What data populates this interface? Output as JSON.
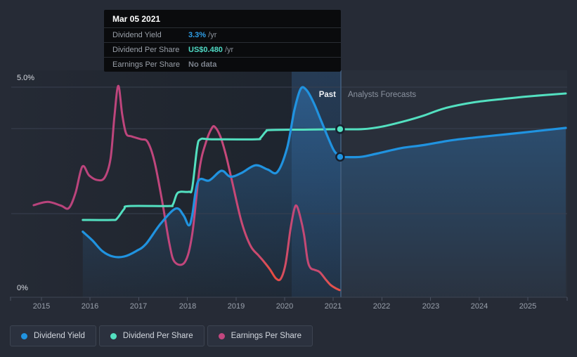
{
  "page": {
    "background": "#262b36"
  },
  "tooltip": {
    "date": "Mar 05 2021",
    "rows": [
      {
        "label": "Dividend Yield",
        "value": "3.3%",
        "suffix": " /yr",
        "value_color": "#2e9fe8"
      },
      {
        "label": "Dividend Per Share",
        "value": "US$0.480",
        "suffix": " /yr",
        "value_color": "#4fd9c4"
      },
      {
        "label": "Earnings Per Share",
        "value": "No data",
        "suffix": "",
        "value_color": "#7d838d"
      }
    ]
  },
  "chart": {
    "past_label": "Past",
    "forecast_label": "Analysts Forecasts",
    "y_axis_top": "5.0%",
    "y_axis_bottom": "0%",
    "years": [
      "2015",
      "2016",
      "2017",
      "2018",
      "2019",
      "2020",
      "2021",
      "2022",
      "2023",
      "2024",
      "2025"
    ]
  },
  "legend": {
    "items": [
      {
        "label": "Dividend Yield",
        "color": "#2093e0"
      },
      {
        "label": "Dividend Per Share",
        "color": "#53e0c0"
      },
      {
        "label": "Earnings Per Share",
        "color": "#c2477f"
      }
    ]
  },
  "chart_data": {
    "type": "line",
    "x_axis": {
      "label": "year",
      "range": [
        2014.7,
        2025.9
      ],
      "ticks": [
        2015,
        2016,
        2017,
        2018,
        2019,
        2020,
        2021,
        2022,
        2023,
        2024,
        2025
      ]
    },
    "y_axis": {
      "label": "percent of left axis",
      "range": [
        0,
        5
      ],
      "tick_labels": [
        "5.0%",
        "0%"
      ],
      "gridlines_pct": [
        5.0,
        4.0,
        2.0,
        0
      ]
    },
    "divider_year": 2021.16,
    "highlight_band_years": [
      2020.15,
      2021.16
    ],
    "legend_position": "bottom-left",
    "cursor": {
      "date": "Mar 05 2021",
      "year": 2021.14,
      "dividend_yield_pct": 3.34,
      "dividend_per_share_usd": "US$0.480",
      "dividend_per_share_plot_pct": 4.0,
      "earnings_per_share": "No data"
    },
    "series": [
      {
        "name": "Dividend Yield",
        "color": "#2093e0",
        "unit": "%",
        "past": [
          [
            2015.85,
            1.56
          ],
          [
            2016.05,
            1.35
          ],
          [
            2016.25,
            1.1
          ],
          [
            2016.47,
            0.97
          ],
          [
            2016.7,
            0.97
          ],
          [
            2016.95,
            1.1
          ],
          [
            2017.15,
            1.27
          ],
          [
            2017.45,
            1.75
          ],
          [
            2017.76,
            2.11
          ],
          [
            2017.92,
            1.95
          ],
          [
            2018.03,
            1.71
          ],
          [
            2018.1,
            1.95
          ],
          [
            2018.22,
            2.76
          ],
          [
            2018.45,
            2.78
          ],
          [
            2018.7,
            3.01
          ],
          [
            2018.88,
            2.87
          ],
          [
            2019.1,
            2.95
          ],
          [
            2019.4,
            3.14
          ],
          [
            2019.65,
            3.04
          ],
          [
            2019.85,
            2.98
          ],
          [
            2020.05,
            3.55
          ],
          [
            2020.2,
            4.45
          ],
          [
            2020.33,
            4.96
          ],
          [
            2020.45,
            4.93
          ],
          [
            2020.6,
            4.62
          ],
          [
            2020.75,
            4.2
          ],
          [
            2020.9,
            3.78
          ],
          [
            2021.02,
            3.48
          ],
          [
            2021.14,
            3.34
          ]
        ],
        "forecast": [
          [
            2021.14,
            3.34
          ],
          [
            2021.55,
            3.34
          ],
          [
            2021.9,
            3.42
          ],
          [
            2022.4,
            3.55
          ],
          [
            2022.85,
            3.62
          ],
          [
            2023.4,
            3.73
          ],
          [
            2023.9,
            3.8
          ],
          [
            2024.4,
            3.86
          ],
          [
            2024.9,
            3.92
          ],
          [
            2025.78,
            4.03
          ]
        ]
      },
      {
        "name": "Dividend Per Share",
        "color": "#53e0c0",
        "unit": "US$ plotted on % axis (plot 4.0 = US$0.480, i.e. US$0.12 per plot unit)",
        "past": [
          [
            2015.85,
            1.84
          ],
          [
            2016.45,
            1.84
          ],
          [
            2016.55,
            1.87
          ],
          [
            2016.7,
            2.1
          ],
          [
            2016.8,
            2.17
          ],
          [
            2017.6,
            2.17
          ],
          [
            2017.7,
            2.2
          ],
          [
            2017.78,
            2.45
          ],
          [
            2017.86,
            2.51
          ],
          [
            2018.03,
            2.51
          ],
          [
            2018.1,
            2.6
          ],
          [
            2018.2,
            3.55
          ],
          [
            2018.27,
            3.76
          ],
          [
            2018.5,
            3.76
          ],
          [
            2019.4,
            3.76
          ],
          [
            2019.5,
            3.79
          ],
          [
            2019.62,
            3.95
          ],
          [
            2019.72,
            3.98
          ],
          [
            2020.5,
            3.99
          ],
          [
            2021.13,
            4.0
          ]
        ],
        "forecast": [
          [
            2021.13,
            4.0
          ],
          [
            2021.6,
            4.0
          ],
          [
            2022.0,
            4.06
          ],
          [
            2022.5,
            4.2
          ],
          [
            2022.85,
            4.32
          ],
          [
            2023.3,
            4.5
          ],
          [
            2023.9,
            4.64
          ],
          [
            2024.5,
            4.72
          ],
          [
            2025.0,
            4.78
          ],
          [
            2025.78,
            4.85
          ]
        ]
      },
      {
        "name": "Earnings Per Share",
        "color": "#c2477f",
        "negative_color": "#e65047",
        "unit": "plotted on % axis, no data after Mar 05 2021",
        "negative_periods": [
          [
            2019.62,
            2019.95
          ],
          [
            2020.9,
            2021.13
          ]
        ],
        "past": [
          [
            2014.84,
            2.19
          ],
          [
            2015.13,
            2.27
          ],
          [
            2015.4,
            2.18
          ],
          [
            2015.56,
            2.12
          ],
          [
            2015.7,
            2.48
          ],
          [
            2015.84,
            3.11
          ],
          [
            2015.98,
            2.9
          ],
          [
            2016.15,
            2.79
          ],
          [
            2016.3,
            2.85
          ],
          [
            2016.42,
            3.3
          ],
          [
            2016.5,
            4.3
          ],
          [
            2016.58,
            5.03
          ],
          [
            2016.66,
            4.35
          ],
          [
            2016.74,
            3.9
          ],
          [
            2016.85,
            3.83
          ],
          [
            2017.05,
            3.76
          ],
          [
            2017.18,
            3.7
          ],
          [
            2017.32,
            3.25
          ],
          [
            2017.48,
            2.3
          ],
          [
            2017.63,
            1.28
          ],
          [
            2017.74,
            0.84
          ],
          [
            2017.95,
            0.84
          ],
          [
            2018.1,
            1.5
          ],
          [
            2018.25,
            3.05
          ],
          [
            2018.38,
            3.68
          ],
          [
            2018.5,
            4.02
          ],
          [
            2018.57,
            4.05
          ],
          [
            2018.68,
            3.82
          ],
          [
            2018.8,
            3.35
          ],
          [
            2018.93,
            2.7
          ],
          [
            2019.12,
            1.77
          ],
          [
            2019.3,
            1.22
          ],
          [
            2019.46,
            1.0
          ],
          [
            2019.58,
            0.84
          ],
          [
            2019.7,
            0.66
          ],
          [
            2019.82,
            0.45
          ],
          [
            2019.92,
            0.44
          ],
          [
            2020.02,
            0.8
          ],
          [
            2020.12,
            1.62
          ],
          [
            2020.2,
            2.1
          ],
          [
            2020.25,
            2.17
          ],
          [
            2020.32,
            1.92
          ],
          [
            2020.4,
            1.48
          ],
          [
            2020.47,
            0.9
          ],
          [
            2020.53,
            0.7
          ],
          [
            2020.62,
            0.65
          ],
          [
            2020.72,
            0.6
          ],
          [
            2020.84,
            0.43
          ],
          [
            2020.94,
            0.3
          ],
          [
            2021.04,
            0.22
          ],
          [
            2021.13,
            0.17
          ]
        ],
        "forecast": []
      }
    ]
  }
}
